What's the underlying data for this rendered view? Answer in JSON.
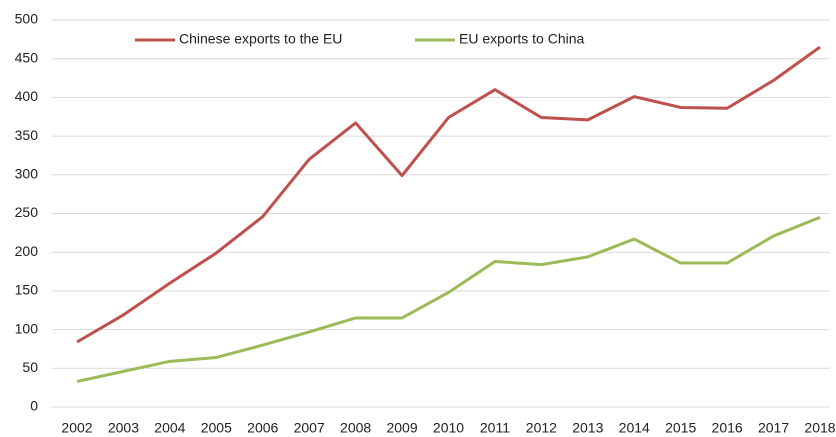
{
  "chart_data": {
    "type": "line",
    "categories": [
      "2002",
      "2003",
      "2004",
      "2005",
      "2006",
      "2007",
      "2008",
      "2009",
      "2010",
      "2011",
      "2012",
      "2013",
      "2014",
      "2015",
      "2016",
      "2017",
      "2018"
    ],
    "series": [
      {
        "name": "Chinese exports to the EU",
        "color": "#c0504d",
        "values": [
          84,
          119,
          160,
          199,
          246,
          320,
          367,
          299,
          374,
          410,
          374,
          371,
          401,
          387,
          386,
          422,
          465
        ]
      },
      {
        "name": "EU exports to China",
        "color": "#9bbb59",
        "values": [
          33,
          46,
          59,
          64,
          80,
          97,
          115,
          115,
          148,
          188,
          184,
          194,
          217,
          186,
          186,
          221,
          245
        ]
      }
    ],
    "ylim": [
      0,
      500
    ],
    "yticks": [
      0,
      50,
      100,
      150,
      200,
      250,
      300,
      350,
      400,
      450,
      500
    ],
    "grid": true
  }
}
